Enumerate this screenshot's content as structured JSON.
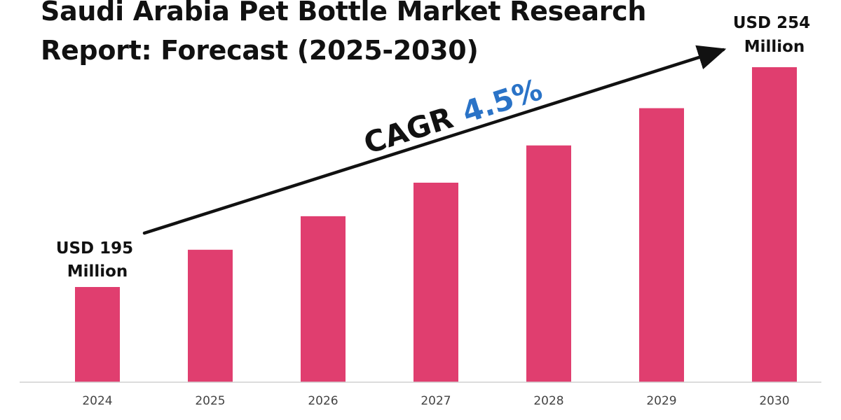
{
  "chart_data": {
    "type": "bar",
    "title_lines": [
      "Saudi Arabia Pet Bottle Market Research",
      "Report: Forecast (2025-2030)"
    ],
    "categories": [
      "2024",
      "2025",
      "2026",
      "2027",
      "2028",
      "2029",
      "2030"
    ],
    "values": [
      195,
      205,
      214,
      223,
      233,
      243,
      254
    ],
    "start_label": [
      "USD 195",
      "Million"
    ],
    "end_label": [
      "USD 254",
      "Million"
    ],
    "cagr_label": "CAGR",
    "cagr_value": "4.5%",
    "colors": {
      "bar": "#e03e6f",
      "arrow": "#111111",
      "cagr_value": "#2a73c7",
      "axis": "#d0d0d0"
    },
    "grid": false,
    "legend": "none"
  }
}
